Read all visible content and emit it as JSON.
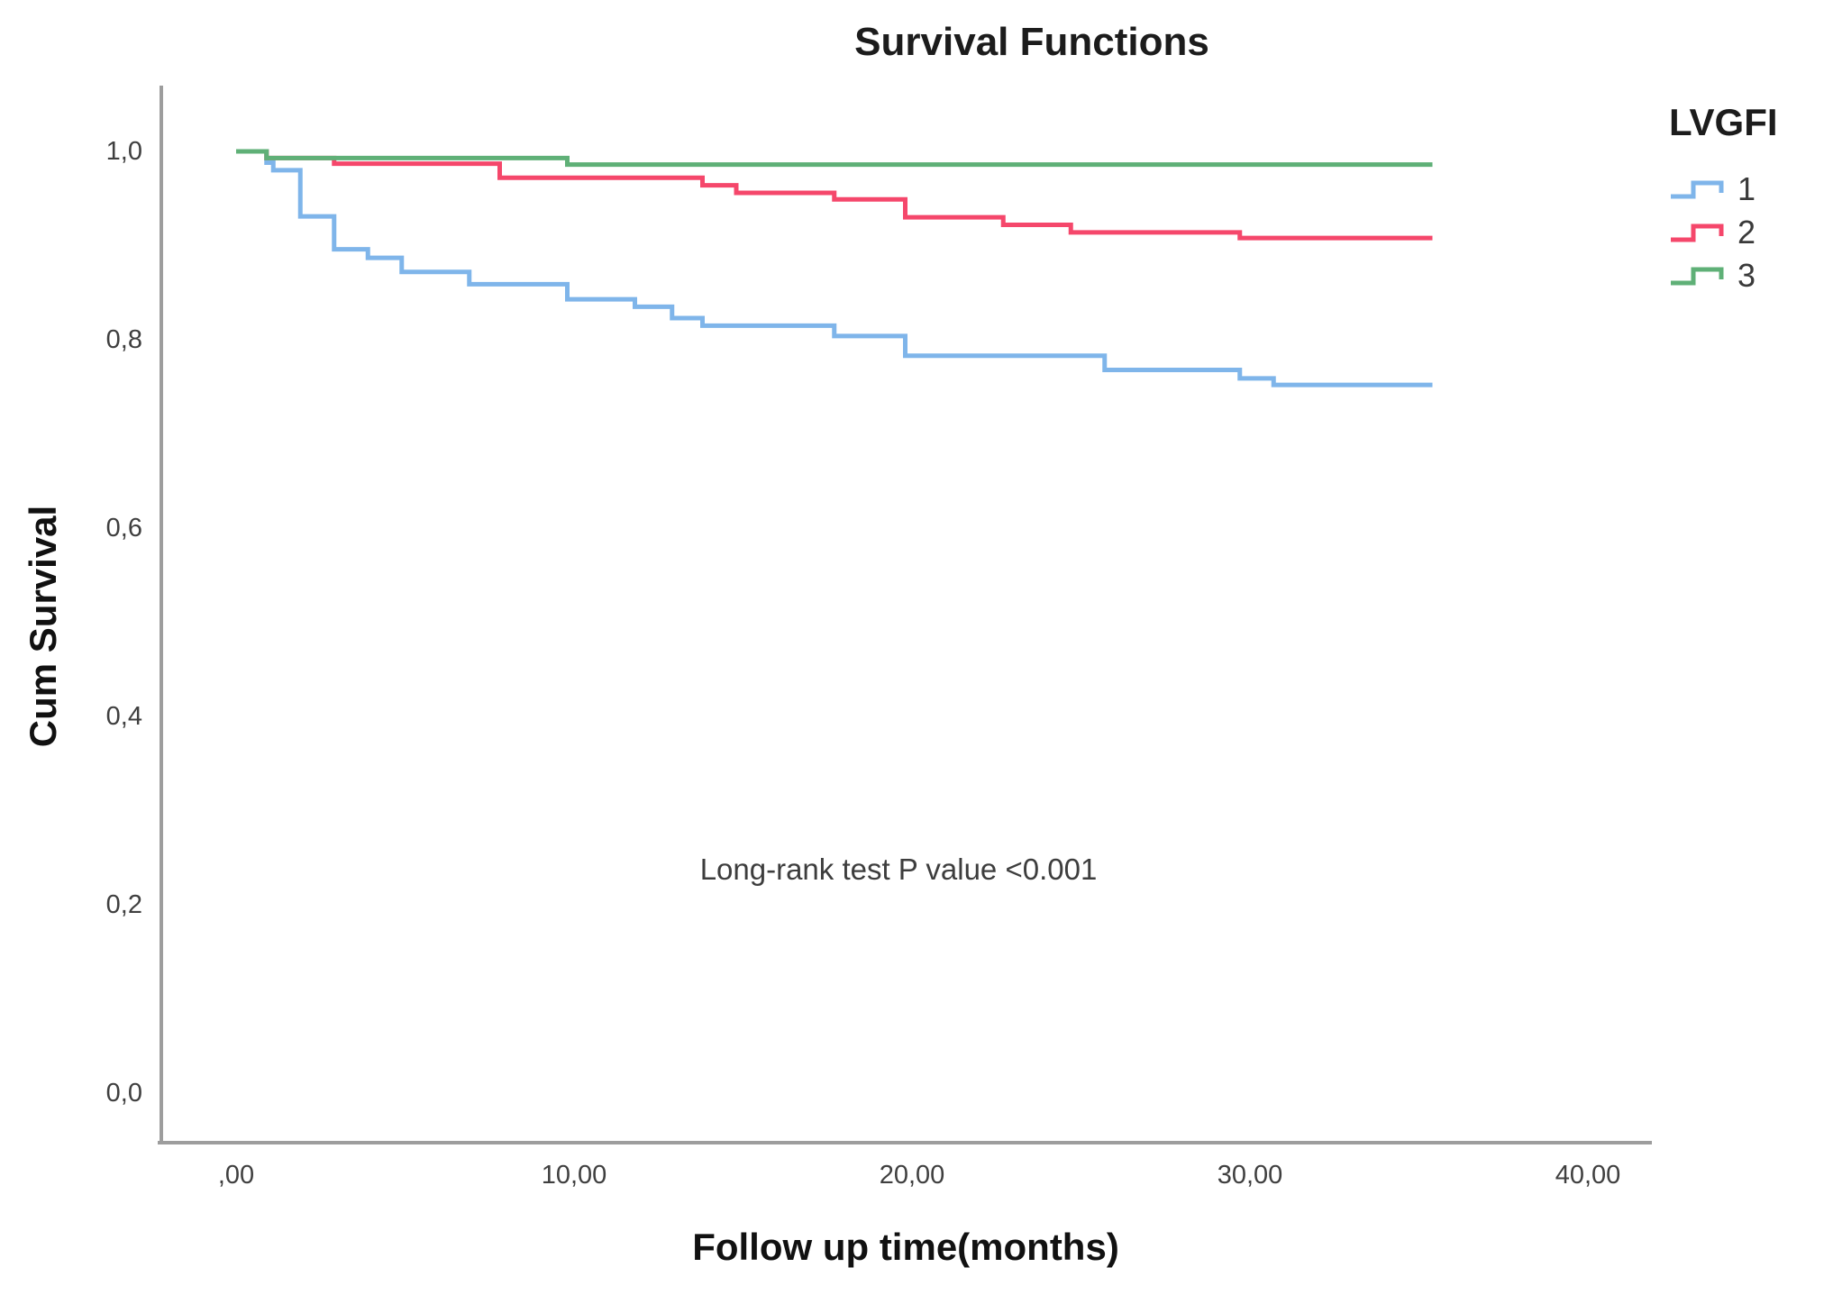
{
  "title": "Survival Functions",
  "y_axis_title": "Cum Survival",
  "x_axis_title": "Follow up time(months)",
  "annotation": "Long-rank test P value <0.001",
  "legend": {
    "title": "LVGFI",
    "items": [
      {
        "label": "1",
        "color": "#7FB5EA"
      },
      {
        "label": "2",
        "color": "#F5476B"
      },
      {
        "label": "3",
        "color": "#5FB077"
      }
    ]
  },
  "axis_color": "#9d9d9d",
  "chart_data": {
    "type": "line",
    "subtype": "kaplan-meier-step",
    "title": "Survival Functions",
    "xlabel": "Follow up time(months)",
    "ylabel": "Cum Survival",
    "xlim": [
      0,
      42
    ],
    "ylim": [
      0,
      1.05
    ],
    "grid": false,
    "legend_position": "top-right",
    "legend_title": "LVGFI",
    "annotation": "Long-rank test P value <0.001",
    "x_tick_labels": [
      ",00",
      "10,00",
      "20,00",
      "30,00",
      "40,00"
    ],
    "x_tick_values": [
      0,
      10,
      20,
      30,
      40
    ],
    "y_tick_labels": [
      "1,0",
      "0,8",
      "0,6",
      "0,4",
      "0,2",
      "0,0"
    ],
    "y_tick_values": [
      1.0,
      0.8,
      0.6,
      0.4,
      0.2,
      0.0
    ],
    "series": [
      {
        "name": "1",
        "color": "#7FB5EA",
        "points": [
          [
            0,
            1.0
          ],
          [
            0.9,
            0.988
          ],
          [
            1.1,
            0.98
          ],
          [
            1.9,
            0.931
          ],
          [
            2.9,
            0.896
          ],
          [
            3.9,
            0.887
          ],
          [
            4.9,
            0.872
          ],
          [
            6.9,
            0.859
          ],
          [
            9.8,
            0.843
          ],
          [
            11.8,
            0.835
          ],
          [
            12.9,
            0.823
          ],
          [
            13.8,
            0.815
          ],
          [
            17.7,
            0.804
          ],
          [
            19.8,
            0.783
          ],
          [
            25.7,
            0.768
          ],
          [
            29.7,
            0.759
          ],
          [
            30.7,
            0.752
          ],
          [
            35.4,
            0.752
          ]
        ]
      },
      {
        "name": "2",
        "color": "#F5476B",
        "points": [
          [
            0,
            1.0
          ],
          [
            0.9,
            0.993
          ],
          [
            2.9,
            0.987
          ],
          [
            7.8,
            0.972
          ],
          [
            13.8,
            0.964
          ],
          [
            14.8,
            0.956
          ],
          [
            17.7,
            0.949
          ],
          [
            19.8,
            0.93
          ],
          [
            22.7,
            0.922
          ],
          [
            24.7,
            0.914
          ],
          [
            29.7,
            0.908
          ],
          [
            35.4,
            0.908
          ]
        ]
      },
      {
        "name": "3",
        "color": "#5FB077",
        "points": [
          [
            0,
            1.0
          ],
          [
            0.9,
            0.993
          ],
          [
            9.8,
            0.986
          ],
          [
            35.4,
            0.986
          ]
        ]
      }
    ]
  }
}
